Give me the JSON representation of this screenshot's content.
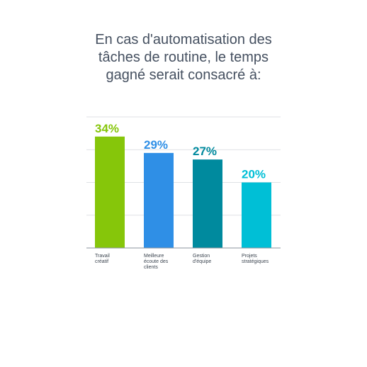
{
  "title_lines": [
    "En cas d'automatisation des",
    "tâches de routine, le temps",
    "gagné serait consacré à:"
  ],
  "chart_data": {
    "type": "bar",
    "title": "En cas d'automatisation des tâches de routine, le temps gagné serait consacré à:",
    "categories": [
      [
        "Travail",
        "créatif"
      ],
      [
        "Meilleure",
        "écoute des",
        "clients"
      ],
      [
        "Gestion",
        "d'équipe"
      ],
      [
        "Projets",
        "stratégiques"
      ]
    ],
    "values": [
      34,
      29,
      27,
      20
    ],
    "value_labels": [
      "34%",
      "29%",
      "27%",
      "20%"
    ],
    "colors": [
      "#86c60a",
      "#2f8fe6",
      "#008a9e",
      "#00bfd6"
    ],
    "ylim": [
      0,
      40
    ],
    "grid": true,
    "xlabel": "",
    "ylabel": ""
  }
}
